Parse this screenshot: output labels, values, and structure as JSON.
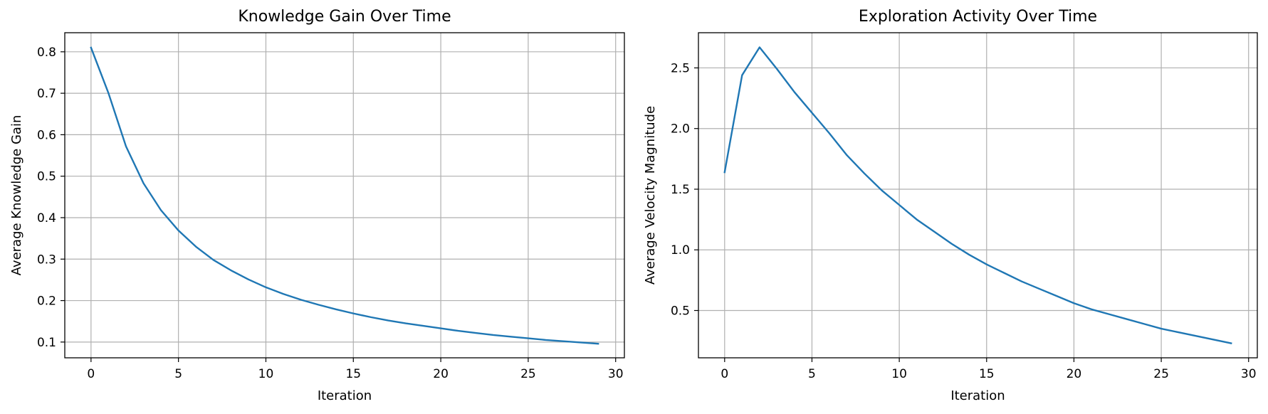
{
  "chart_data": [
    {
      "type": "line",
      "title": "Knowledge Gain Over Time",
      "xlabel": "Iteration",
      "ylabel": "Average Knowledge Gain",
      "xlim": [
        -1.5,
        30.5
      ],
      "ylim": [
        0.062,
        0.846
      ],
      "xticks": [
        0,
        5,
        10,
        15,
        20,
        25,
        30
      ],
      "yticks": [
        0.1,
        0.2,
        0.3,
        0.4,
        0.5,
        0.6,
        0.7,
        0.8
      ],
      "grid": true,
      "series": [
        {
          "color": "#1f77b4",
          "x": [
            0,
            1,
            2,
            3,
            4,
            5,
            6,
            7,
            8,
            9,
            10,
            11,
            12,
            13,
            14,
            15,
            16,
            17,
            18,
            19,
            20,
            21,
            22,
            23,
            24,
            25,
            26,
            27,
            28,
            29
          ],
          "y": [
            0.81,
            0.7,
            0.572,
            0.483,
            0.418,
            0.369,
            0.33,
            0.298,
            0.273,
            0.251,
            0.232,
            0.216,
            0.202,
            0.19,
            0.179,
            0.169,
            0.16,
            0.152,
            0.145,
            0.139,
            0.133,
            0.127,
            0.122,
            0.117,
            0.113,
            0.109,
            0.105,
            0.102,
            0.099,
            0.096
          ]
        }
      ]
    },
    {
      "type": "line",
      "title": "Exploration Activity Over Time",
      "xlabel": "Iteration",
      "ylabel": "Average Velocity Magnitude",
      "xlim": [
        -1.5,
        30.5
      ],
      "ylim": [
        0.11,
        2.79
      ],
      "xticks": [
        0,
        5,
        10,
        15,
        20,
        25,
        30
      ],
      "yticks": [
        0.5,
        1.0,
        1.5,
        2.0,
        2.5
      ],
      "ytick_labels": [
        "0.5",
        "1.0",
        "1.5",
        "2.0",
        "2.5"
      ],
      "grid": true,
      "series": [
        {
          "color": "#1f77b4",
          "x": [
            0,
            1,
            2,
            3,
            4,
            5,
            6,
            7,
            8,
            9,
            10,
            11,
            12,
            13,
            14,
            15,
            16,
            17,
            18,
            19,
            20,
            21,
            22,
            23,
            24,
            25,
            26,
            27,
            28,
            29
          ],
          "y": [
            1.64,
            2.44,
            2.67,
            2.49,
            2.3,
            2.13,
            1.96,
            1.78,
            1.63,
            1.49,
            1.37,
            1.25,
            1.15,
            1.05,
            0.96,
            0.88,
            0.81,
            0.74,
            0.68,
            0.62,
            0.56,
            0.51,
            0.47,
            0.43,
            0.39,
            0.35,
            0.32,
            0.29,
            0.26,
            0.23
          ]
        }
      ]
    }
  ]
}
